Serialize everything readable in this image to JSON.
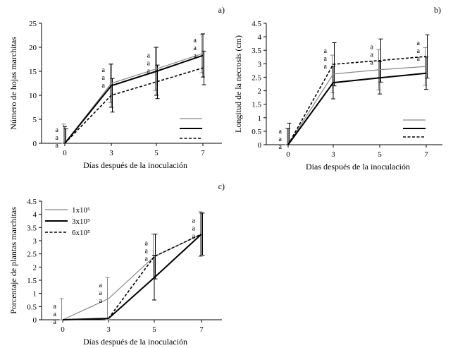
{
  "colors": {
    "series_1x10_5": "#888888",
    "series_3x10_5": "#000000",
    "series_6x10_5": "#000000"
  },
  "chart_data": [
    {
      "type": "line",
      "panel": "a)",
      "xlabel": "Días después de la inoculación",
      "ylabel": "Número de hojas marchitas",
      "x": [
        0,
        3,
        5,
        7
      ],
      "xticks": [
        "0",
        "3",
        "5",
        "7"
      ],
      "ylim": [
        0,
        25
      ],
      "yticks": [
        "0",
        "5",
        "10",
        "15",
        "20",
        "25"
      ],
      "grid": false,
      "legend_placement": "lower-right",
      "series": [
        {
          "style": "solid-gray",
          "values": [
            0,
            12.5,
            15.5,
            18.7
          ],
          "errors": [
            4,
            4,
            4.5,
            4
          ]
        },
        {
          "style": "solid-black",
          "values": [
            0,
            12.0,
            15.0,
            18.3
          ],
          "errors": [
            3.5,
            4.5,
            5,
            4.5
          ]
        },
        {
          "style": "dashed-black",
          "values": [
            0,
            10.0,
            12.8,
            15.7
          ],
          "errors": [
            3,
            3.5,
            3.5,
            3.5
          ]
        }
      ],
      "significance": [
        [
          "a",
          "a",
          "a"
        ],
        [
          "a",
          "a",
          "a"
        ],
        [
          "a",
          "a",
          "a"
        ],
        [
          "a",
          "a",
          "a"
        ]
      ]
    },
    {
      "type": "line",
      "panel": "b)",
      "xlabel": "Días después de la inoculación",
      "ylabel": "Longitud de la necrosis (cm)",
      "x": [
        0,
        3,
        5,
        7
      ],
      "xticks": [
        "0",
        "3",
        "5",
        "7"
      ],
      "ylim": [
        0,
        4.5
      ],
      "yticks": [
        "0",
        "0.5",
        "1",
        "1.5",
        "2",
        "2.5",
        "3",
        "3.5",
        "4",
        "4.5"
      ],
      "grid": false,
      "legend_placement": "lower-right",
      "series": [
        {
          "style": "solid-gray",
          "values": [
            0,
            2.62,
            2.78,
            2.9
          ],
          "errors": [
            0.6,
            0.7,
            0.75,
            0.7
          ]
        },
        {
          "style": "solid-black",
          "values": [
            0,
            2.3,
            2.48,
            2.65
          ],
          "errors": [
            0.6,
            0.6,
            0.6,
            0.6
          ]
        },
        {
          "style": "dashed-black",
          "values": [
            0,
            2.98,
            3.12,
            3.27
          ],
          "errors": [
            0.8,
            0.8,
            0.8,
            0.8
          ]
        }
      ],
      "significance": [
        [
          "a",
          "a",
          "a"
        ],
        [
          "a",
          "a",
          "a"
        ],
        [
          "a",
          "a",
          "a"
        ],
        [
          "a",
          "a",
          "a"
        ]
      ]
    },
    {
      "type": "line",
      "panel": "c)",
      "xlabel": "Días después de la inoculación",
      "ylabel": "Porcentaje de plantas marchitas",
      "x": [
        0,
        3,
        5,
        7
      ],
      "xticks": [
        "0",
        "3",
        "5",
        "7"
      ],
      "ylim": [
        0,
        4.5
      ],
      "yticks": [
        "0",
        "0.5",
        "1",
        "1.5",
        "2",
        "2.5",
        "3",
        "3.5",
        "4",
        "4.5"
      ],
      "grid": false,
      "legend_placement": "top-left",
      "series": [
        {
          "name": "1x10⁵",
          "style": "solid-gray",
          "values": [
            0,
            0.8,
            2.4,
            3.25
          ],
          "errors": [
            0.8,
            0.8,
            0.85,
            0.85
          ]
        },
        {
          "name": "3x10⁵",
          "style": "solid-black",
          "values": [
            0,
            0.05,
            1.6,
            3.25
          ],
          "errors": [
            0,
            0,
            0.85,
            0.8
          ]
        },
        {
          "name": "6x10⁵",
          "style": "dashed-black",
          "values": [
            0,
            0.05,
            2.4,
            3.25
          ],
          "errors": [
            0,
            0,
            0.85,
            0.8
          ]
        }
      ],
      "significance": [
        [
          "a",
          "a",
          "a"
        ],
        [
          "a",
          "a",
          "a"
        ],
        [
          "a",
          "a",
          "a"
        ],
        [
          "a",
          "a",
          "a"
        ]
      ]
    }
  ]
}
